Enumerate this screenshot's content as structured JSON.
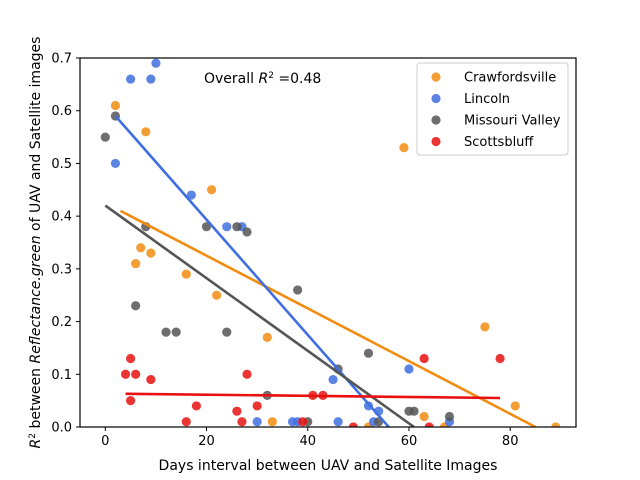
{
  "chart_data": {
    "type": "scatter",
    "title": "",
    "xlabel": "Days interval between UAV and Satellite Images",
    "ylabel_parts": [
      "R",
      "2",
      " between ",
      "Reflectance.green",
      " of UAV and Satellite images"
    ],
    "xlim": [
      -5,
      93
    ],
    "ylim": [
      0,
      0.7
    ],
    "xticks": [
      0,
      20,
      40,
      60,
      80
    ],
    "yticks": [
      0.0,
      0.1,
      0.2,
      0.3,
      0.4,
      0.5,
      0.6,
      0.7
    ],
    "grid": false,
    "legend_position": "top-right",
    "annotation": {
      "prefix": "Overall ",
      "base": "R",
      "sup": "2",
      "suffix": " =0.48"
    },
    "series": [
      {
        "name": "Crawfordsville",
        "color": "#f28c10",
        "points": [
          [
            2,
            0.61
          ],
          [
            8,
            0.56
          ],
          [
            7,
            0.34
          ],
          [
            9,
            0.33
          ],
          [
            6,
            0.31
          ],
          [
            16,
            0.29
          ],
          [
            21,
            0.45
          ],
          [
            22,
            0.25
          ],
          [
            32,
            0.17
          ],
          [
            33,
            0.01
          ],
          [
            52,
            0.0
          ],
          [
            59,
            0.53
          ],
          [
            63,
            0.02
          ],
          [
            67,
            0.0
          ],
          [
            75,
            0.19
          ],
          [
            81,
            0.04
          ],
          [
            89,
            0.0
          ]
        ],
        "fit": [
          [
            3,
            0.41
          ],
          [
            85,
            0.0
          ]
        ]
      },
      {
        "name": "Lincoln",
        "color": "#3f6ee0",
        "points": [
          [
            5,
            0.66
          ],
          [
            9,
            0.66
          ],
          [
            10,
            0.69
          ],
          [
            2,
            0.5
          ],
          [
            17,
            0.44
          ],
          [
            24,
            0.38
          ],
          [
            27,
            0.38
          ],
          [
            30,
            0.01
          ],
          [
            37,
            0.01
          ],
          [
            38,
            0.01
          ],
          [
            45,
            0.09
          ],
          [
            46,
            0.01
          ],
          [
            52,
            0.04
          ],
          [
            53,
            0.01
          ],
          [
            54,
            0.03
          ],
          [
            60,
            0.11
          ],
          [
            68,
            0.01
          ]
        ],
        "fit": [
          [
            2,
            0.59
          ],
          [
            56,
            0.0
          ]
        ]
      },
      {
        "name": "Missouri Valley",
        "color": "#555555",
        "points": [
          [
            0,
            0.55
          ],
          [
            2,
            0.59
          ],
          [
            8,
            0.38
          ],
          [
            6,
            0.23
          ],
          [
            12,
            0.18
          ],
          [
            14,
            0.18
          ],
          [
            20,
            0.38
          ],
          [
            24,
            0.18
          ],
          [
            26,
            0.38
          ],
          [
            28,
            0.37
          ],
          [
            32,
            0.06
          ],
          [
            38,
            0.26
          ],
          [
            40,
            0.01
          ],
          [
            46,
            0.11
          ],
          [
            52,
            0.14
          ],
          [
            54,
            0.01
          ],
          [
            60,
            0.03
          ],
          [
            61,
            0.03
          ],
          [
            68,
            0.02
          ]
        ],
        "fit": [
          [
            0,
            0.42
          ],
          [
            61,
            0.0
          ]
        ]
      },
      {
        "name": "Scottsbluff",
        "color": "#e81010",
        "points": [
          [
            4,
            0.1
          ],
          [
            5,
            0.13
          ],
          [
            6,
            0.1
          ],
          [
            5,
            0.05
          ],
          [
            9,
            0.09
          ],
          [
            16,
            0.01
          ],
          [
            18,
            0.04
          ],
          [
            26,
            0.03
          ],
          [
            27,
            0.01
          ],
          [
            28,
            0.1
          ],
          [
            30,
            0.04
          ],
          [
            39,
            0.01
          ],
          [
            41,
            0.06
          ],
          [
            43,
            0.06
          ],
          [
            49,
            0.0
          ],
          [
            63,
            0.13
          ],
          [
            64,
            0.0
          ],
          [
            78,
            0.13
          ]
        ],
        "fit": [
          [
            4,
            0.063
          ],
          [
            78,
            0.055
          ]
        ]
      }
    ]
  }
}
